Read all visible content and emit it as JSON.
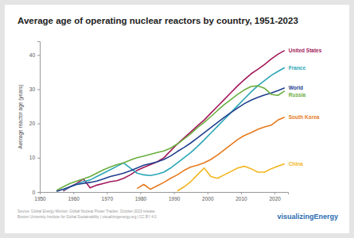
{
  "chart_data": {
    "type": "line",
    "title": "Average age of operating nuclear reactors by country, 1951-2023",
    "y_label": "Average reactor age (years)",
    "source": [
      "Source: Global Energy Monitor, Global Nuclear Power Tracker, October 2023 release",
      "Boston University Institute for Global Sustainability | visualizingenergy.org | CC BY 4.0"
    ],
    "logo": "visualizingEnergy",
    "x": [
      1951,
      1953,
      1955,
      1957,
      1959,
      1961,
      1963,
      1965,
      1967,
      1969,
      1971,
      1973,
      1975,
      1977,
      1979,
      1981,
      1983,
      1985,
      1987,
      1989,
      1991,
      1993,
      1995,
      1997,
      1999,
      2001,
      2003,
      2005,
      2007,
      2009,
      2011,
      2013,
      2015,
      2017,
      2019,
      2021,
      2023
    ],
    "xlim": [
      1950,
      2024
    ],
    "xticks": [
      1950,
      1960,
      1970,
      1980,
      1990,
      2000,
      2010,
      2020
    ],
    "ylim": [
      0,
      44
    ],
    "yticks": [
      0,
      10,
      20,
      30,
      40
    ],
    "grid": false,
    "series": [
      {
        "name": "United States",
        "color": "#a3195b",
        "values": [
          null,
          null,
          null,
          0.3,
          1.5,
          2.5,
          3.8,
          1.2,
          2.0,
          2.5,
          3.0,
          3.3,
          4.0,
          5.0,
          6.3,
          7.2,
          8.0,
          8.8,
          10.0,
          12.0,
          14.0,
          15.8,
          17.5,
          19.3,
          21.0,
          23.0,
          25.0,
          27.0,
          29.0,
          31.0,
          32.8,
          34.5,
          35.8,
          37.2,
          38.8,
          40.2,
          41.3
        ]
      },
      {
        "name": "France",
        "color": "#2ba6b6",
        "values": [
          null,
          null,
          null,
          0.5,
          1.5,
          2.3,
          3.0,
          3.5,
          4.5,
          5.5,
          6.5,
          7.5,
          8.5,
          7.0,
          5.5,
          5.0,
          4.8,
          5.2,
          5.8,
          7.0,
          8.5,
          10.0,
          11.5,
          13.3,
          15.2,
          17.2,
          19.2,
          21.2,
          23.2,
          25.2,
          27.2,
          29.2,
          31.0,
          32.5,
          34.0,
          35.2,
          36.3
        ]
      },
      {
        "name": "World",
        "color": "#1f3f8f",
        "values": [
          null,
          null,
          0.2,
          0.8,
          1.5,
          2.2,
          2.5,
          2.8,
          3.2,
          3.8,
          4.5,
          5.0,
          5.5,
          6.2,
          7.0,
          7.8,
          8.3,
          8.8,
          9.5,
          10.5,
          11.8,
          13.0,
          14.3,
          15.8,
          17.3,
          18.8,
          20.3,
          21.8,
          23.2,
          24.5,
          25.8,
          26.8,
          27.6,
          28.3,
          28.9,
          29.6,
          30.4
        ]
      },
      {
        "name": "Russia",
        "color": "#6aae3f",
        "values": [
          null,
          null,
          0.5,
          1.5,
          2.5,
          3.2,
          3.8,
          4.5,
          5.5,
          6.5,
          7.3,
          8.0,
          8.5,
          9.3,
          10.0,
          10.5,
          11.0,
          11.5,
          12.0,
          12.8,
          14.0,
          15.5,
          17.0,
          18.8,
          20.3,
          22.0,
          23.8,
          25.5,
          27.0,
          28.5,
          29.8,
          30.8,
          31.0,
          30.3,
          28.5,
          28.2,
          29.5
        ]
      },
      {
        "name": "South Korea",
        "color": "#e8791c",
        "values": [
          null,
          null,
          null,
          null,
          null,
          null,
          null,
          null,
          null,
          null,
          null,
          null,
          null,
          null,
          1.0,
          2.2,
          0.8,
          1.8,
          2.8,
          4.0,
          5.0,
          6.3,
          7.3,
          7.8,
          8.5,
          9.5,
          10.8,
          12.3,
          13.8,
          15.3,
          16.5,
          17.3,
          18.3,
          19.0,
          19.5,
          21.0,
          21.8
        ]
      },
      {
        "name": "China",
        "color": "#f2b51f",
        "values": [
          null,
          null,
          null,
          null,
          null,
          null,
          null,
          null,
          null,
          null,
          null,
          null,
          null,
          null,
          null,
          null,
          null,
          null,
          null,
          null,
          0.3,
          1.5,
          3.0,
          5.0,
          7.0,
          4.5,
          4.0,
          5.0,
          6.0,
          7.0,
          7.5,
          6.8,
          5.8,
          5.8,
          6.8,
          7.5,
          8.2
        ]
      }
    ]
  }
}
